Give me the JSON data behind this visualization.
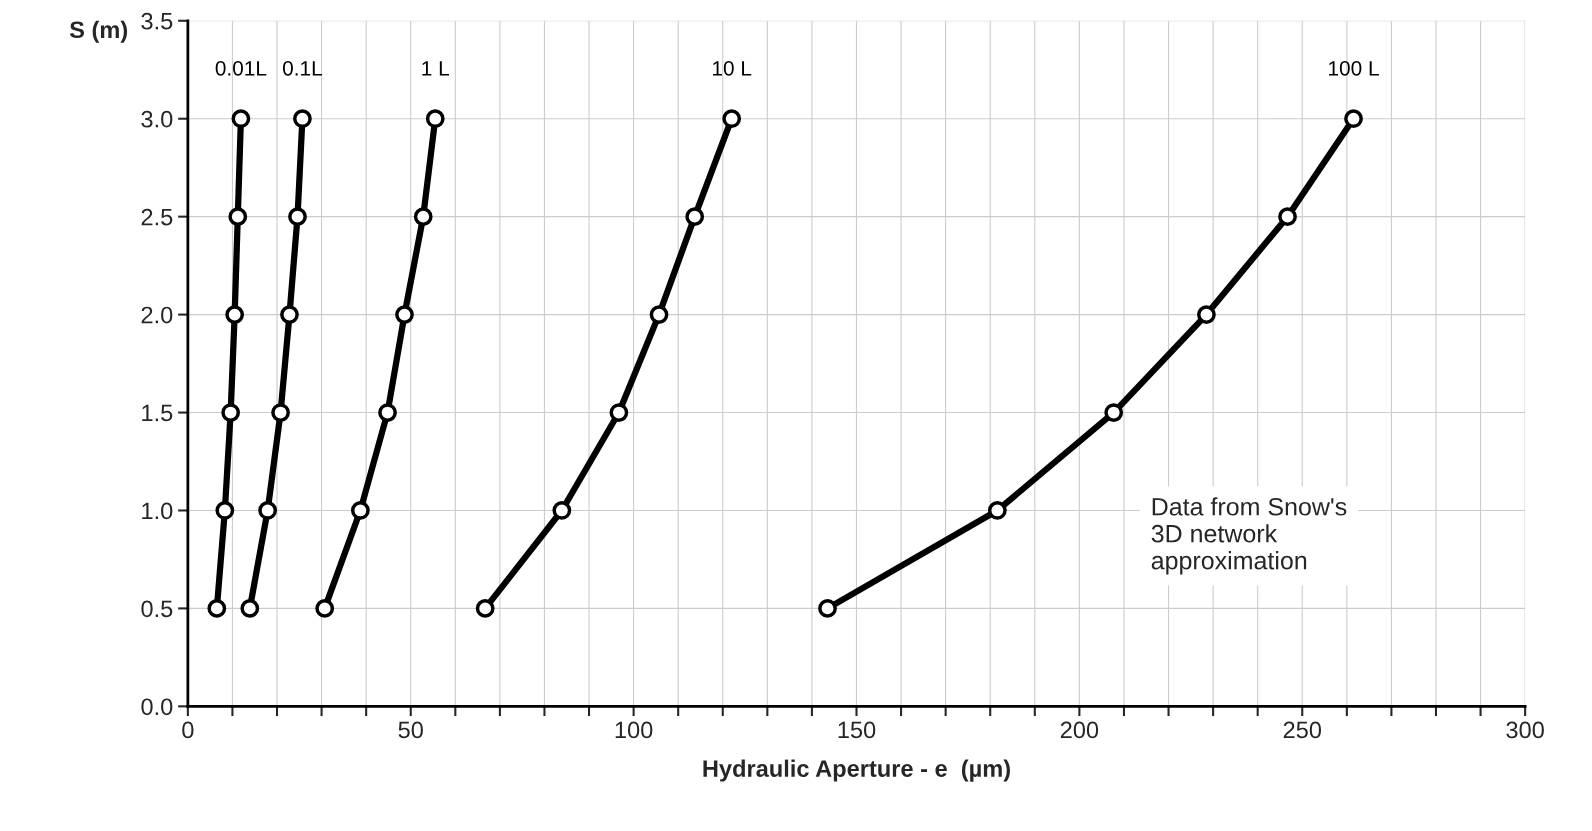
{
  "chart_data": {
    "type": "line",
    "xlabel": "Hydraulic Aperture - e  (µm)",
    "ylabel": "S (m)",
    "xlim": [
      0,
      300
    ],
    "ylim": [
      0,
      3.5
    ],
    "xticks": [
      0,
      {
        "value": 10,
        "label": null
      },
      {
        "value": 20,
        "label": null
      },
      {
        "value": 30,
        "label": null
      },
      {
        "value": 40,
        "label": null
      },
      50,
      {
        "value": 60,
        "label": null
      },
      {
        "value": 70,
        "label": null
      },
      {
        "value": 80,
        "label": null
      },
      {
        "value": 90,
        "label": null
      },
      100,
      {
        "value": 110,
        "label": null
      },
      {
        "value": 120,
        "label": null
      },
      {
        "value": 130,
        "label": null
      },
      {
        "value": 140,
        "label": null
      },
      150,
      {
        "value": 160,
        "label": null
      },
      {
        "value": 170,
        "label": null
      },
      {
        "value": 180,
        "label": null
      },
      {
        "value": 190,
        "label": null
      },
      200,
      {
        "value": 210,
        "label": null
      },
      {
        "value": 220,
        "label": null
      },
      {
        "value": 230,
        "label": null
      },
      {
        "value": 240,
        "label": null
      },
      250,
      {
        "value": 260,
        "label": null
      },
      {
        "value": 270,
        "label": null
      },
      {
        "value": 280,
        "label": null
      },
      {
        "value": 290,
        "label": null
      },
      300
    ],
    "yticks": [
      {
        "value": 0,
        "label": "0.0"
      },
      0.5,
      {
        "value": 1,
        "label": "1.0"
      },
      1.5,
      {
        "value": 2,
        "label": "2.0"
      },
      2.5,
      {
        "value": 3,
        "label": "3.0"
      },
      3.5
    ],
    "grid": true,
    "marker": "circle",
    "line_style": "solid",
    "series": [
      {
        "name": "0.01L",
        "color": "#000000",
        "x": [
          6.5,
          8.3,
          9.6,
          10.5,
          11.2,
          11.9
        ],
        "values": [
          0.5,
          1.0,
          1.5,
          2.0,
          2.5,
          3.0
        ]
      },
      {
        "name": "0.1L",
        "color": "#000000",
        "x": [
          13.9,
          17.9,
          20.8,
          22.8,
          24.6,
          25.7
        ],
        "values": [
          0.5,
          1.0,
          1.5,
          2.0,
          2.5,
          3.0
        ]
      },
      {
        "name": "1 L",
        "color": "#000000",
        "x": [
          30.7,
          38.7,
          44.8,
          48.6,
          52.8,
          55.5
        ],
        "values": [
          0.5,
          1.0,
          1.5,
          2.0,
          2.5,
          3.0
        ]
      },
      {
        "name": "10 L",
        "color": "#000000",
        "x": [
          66.7,
          83.9,
          96.7,
          105.7,
          113.7,
          122.0
        ],
        "values": [
          0.5,
          1.0,
          1.5,
          2.0,
          2.5,
          3.0
        ]
      },
      {
        "name": "100 L",
        "color": "#000000",
        "x": [
          143.5,
          181.6,
          207.7,
          228.5,
          246.7,
          261.5
        ],
        "values": [
          0.5,
          1.0,
          1.5,
          2.0,
          2.5,
          3.0
        ]
      }
    ],
    "annotations": [
      "Data from Snow's\n3D network\napproximation"
    ]
  }
}
